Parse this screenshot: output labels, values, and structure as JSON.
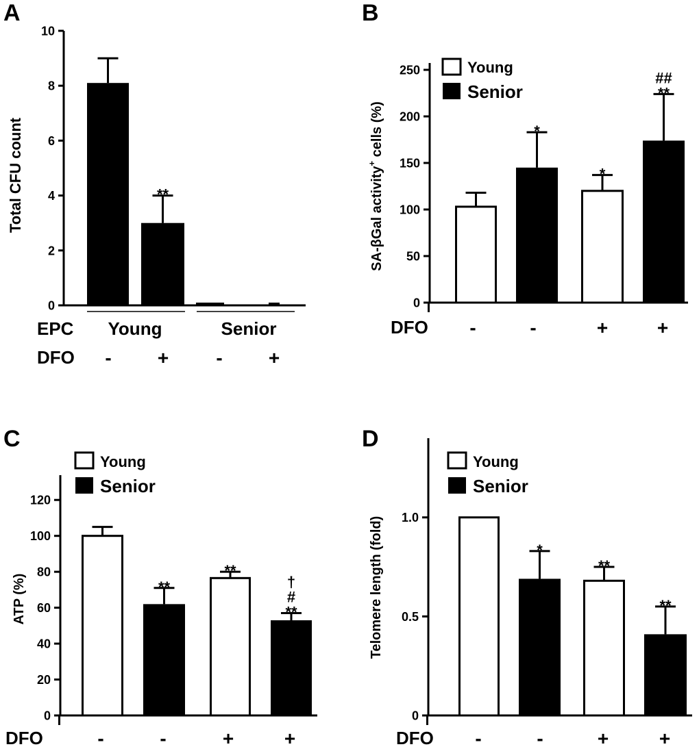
{
  "chart_data": [
    {
      "panel": "A",
      "type": "bar",
      "ylabel": "Total CFU count",
      "ylim": [
        0,
        10
      ],
      "yticks": [
        "0",
        "2",
        "4",
        "6",
        "8",
        "10"
      ],
      "rows": [
        {
          "label": "EPC",
          "groups": [
            {
              "name": "Young"
            },
            {
              "name": "Senior"
            }
          ]
        },
        {
          "label": "DFO",
          "values": [
            "-",
            "+",
            "-",
            "+"
          ]
        }
      ],
      "bars": [
        {
          "value": 8.1,
          "error": 0.9,
          "fill": "#000000",
          "sig": ""
        },
        {
          "value": 3.0,
          "error": 1.0,
          "fill": "#000000",
          "sig": "**"
        },
        {
          "value": 0.1,
          "error": 0,
          "fill": "#000000",
          "sig": ""
        },
        {
          "value": 0.1,
          "error": 0,
          "fill": "#000000",
          "sig": ""
        }
      ]
    },
    {
      "panel": "B",
      "type": "bar",
      "ylabel_main": "SA-βGal activity",
      "ylabel_sup": "+",
      "ylabel_rest": " cells (%)",
      "ylim": [
        0,
        250
      ],
      "yticks": [
        "0",
        "50",
        "100",
        "150",
        "200",
        "250"
      ],
      "legend": [
        {
          "name": "Young",
          "fill": "#ffffff"
        },
        {
          "name": "Senior",
          "fill": "#000000"
        }
      ],
      "row_label": "DFO",
      "dfo": [
        "-",
        "-",
        "+",
        "+"
      ],
      "bars": [
        {
          "value": 103,
          "error": 15,
          "fill": "#ffffff",
          "sig": [
            ""
          ]
        },
        {
          "value": 145,
          "error": 38,
          "fill": "#000000",
          "sig": [
            "*"
          ]
        },
        {
          "value": 120,
          "error": 17,
          "fill": "#ffffff",
          "sig": [
            "*"
          ]
        },
        {
          "value": 174,
          "error": 50,
          "fill": "#000000",
          "sig": [
            "##",
            "**"
          ]
        }
      ]
    },
    {
      "panel": "C",
      "type": "bar",
      "ylabel": "ATP  (%)",
      "ylim": [
        0,
        130
      ],
      "yticks": [
        "0",
        "20",
        "40",
        "60",
        "80",
        "100",
        "120"
      ],
      "legend": [
        {
          "name": "Young",
          "fill": "#ffffff"
        },
        {
          "name": "Senior",
          "fill": "#000000"
        }
      ],
      "row_label": "DFO",
      "dfo": [
        "-",
        "-",
        "+",
        "+"
      ],
      "bars": [
        {
          "value": 100,
          "error": 5,
          "fill": "#ffffff",
          "sig": [
            ""
          ]
        },
        {
          "value": 62,
          "error": 9,
          "fill": "#000000",
          "sig": [
            "**"
          ]
        },
        {
          "value": 76.5,
          "error": 3.5,
          "fill": "#ffffff",
          "sig": [
            "**"
          ]
        },
        {
          "value": 53,
          "error": 4,
          "fill": "#000000",
          "sig": [
            "†",
            "#",
            "**"
          ]
        }
      ]
    },
    {
      "panel": "D",
      "type": "bar",
      "ylabel": "Telomere length (fold)",
      "ylim": [
        0,
        1.4
      ],
      "yticks": [
        "0",
        "0.5",
        "1.0"
      ],
      "legend": [
        {
          "name": "Young",
          "fill": "#ffffff"
        },
        {
          "name": "Senior",
          "fill": "#000000"
        }
      ],
      "row_label": "DFO",
      "dfo": [
        "-",
        "-",
        "+",
        "+"
      ],
      "bars": [
        {
          "value": 1.0,
          "error": 0,
          "fill": "#ffffff",
          "sig": [
            ""
          ]
        },
        {
          "value": 0.69,
          "error": 0.14,
          "fill": "#000000",
          "sig": [
            "*"
          ]
        },
        {
          "value": 0.68,
          "error": 0.07,
          "fill": "#ffffff",
          "sig": [
            "**"
          ]
        },
        {
          "value": 0.41,
          "error": 0.14,
          "fill": "#000000",
          "sig": [
            "**"
          ]
        }
      ]
    }
  ]
}
